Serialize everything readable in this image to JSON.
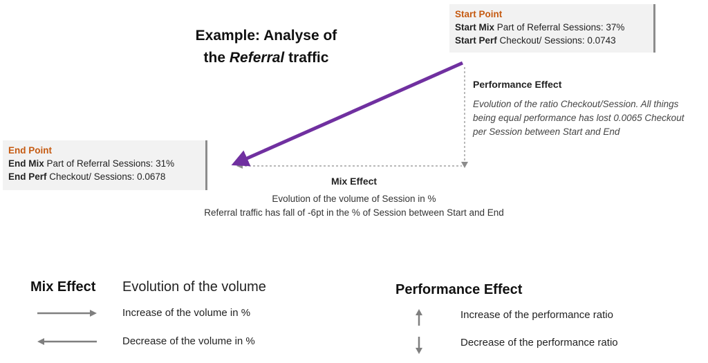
{
  "title": {
    "line1": "Example: Analyse of",
    "line2_prefix": "the ",
    "line2_italic": "Referral",
    "line2_suffix": " traffic"
  },
  "start_point": {
    "header": "Start Point",
    "mix_label": "Start Mix",
    "mix_text": " Part of Referral Sessions: 37%",
    "perf_label": "Start Perf",
    "perf_text": " Checkout/ Sessions: 0.0743"
  },
  "end_point": {
    "header": "End Point",
    "mix_label": "End Mix",
    "mix_text": " Part of Referral Sessions: 31%",
    "perf_label": "End Perf",
    "perf_text": " Checkout/ Sessions: 0.0678"
  },
  "performance_effect": {
    "header": "Performance Effect",
    "description": "Evolution of the ratio Checkout/Session. All things being equal performance has lost 0.0065 Checkout per Session between Start and End"
  },
  "mix_effect": {
    "header": "Mix Effect",
    "line1": "Evolution of the volume of Session in %",
    "line2": "Referral traffic has fall of -6pt in the % of Session between Start and End"
  },
  "legend": {
    "mix_title": "Mix Effect",
    "mix_subtitle": "Evolution of the volume",
    "mix_increase": "Increase of the volume in %",
    "mix_decrease": "Decrease of the volume in %",
    "perf_title": "Performance Effect",
    "perf_increase": "Increase of the performance ratio",
    "perf_decrease": "Decrease of the performance ratio"
  },
  "colors": {
    "main_arrow": "#7030a0",
    "point_header": "#c55a11",
    "dashed": "#8c8c8c",
    "legend_arrow": "#7f7f7f"
  }
}
